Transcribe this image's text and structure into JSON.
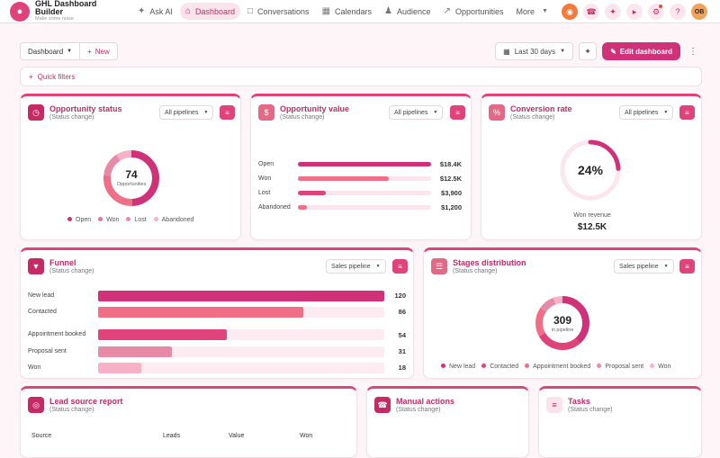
{
  "app": {
    "title": "GHL Dashboard Builder",
    "subtitle": "Make some noise"
  },
  "nav": [
    {
      "label": "Ask AI",
      "icon": "sparkle-icon"
    },
    {
      "label": "Dashboard",
      "icon": "home-icon",
      "active": true
    },
    {
      "label": "Conversations",
      "icon": "chat-icon"
    },
    {
      "label": "Calendars",
      "icon": "calendar-icon"
    },
    {
      "label": "Audience",
      "icon": "people-icon"
    },
    {
      "label": "Opportunities",
      "icon": "trend-icon"
    }
  ],
  "more_label": "More",
  "user_initials": "OB",
  "toolbar": {
    "dashboard_select": "Dashboard",
    "new_label": "New",
    "date_range": "Last 30 days",
    "edit_label": "Edit dashboard"
  },
  "quick_filters_label": "Quick filters",
  "colors": {
    "accent": "#e0437a",
    "dark": "#d0327a",
    "mid": "#f06f86",
    "light": "#e78aa8",
    "pale": "#f8b1c6"
  },
  "opportunity_status": {
    "title": "Opportunity status",
    "subtitle": "(Status change)",
    "pipeline": "All pipelines",
    "total": "74",
    "total_label": "Opportunities",
    "legend": [
      "Open",
      "Won",
      "Lost",
      "Abandoned"
    ]
  },
  "opportunity_value": {
    "title": "Opportunity value",
    "subtitle": "(Status change)",
    "pipeline": "All pipelines",
    "rows": [
      {
        "label": "Open",
        "value": "$18.4K",
        "fraction": 1.0
      },
      {
        "label": "Won",
        "value": "$12.5K",
        "fraction": 0.68
      },
      {
        "label": "Lost",
        "value": "$3,900",
        "fraction": 0.21
      },
      {
        "label": "Abandoned",
        "value": "$1,200",
        "fraction": 0.065
      }
    ]
  },
  "conversion_rate": {
    "title": "Conversion rate",
    "subtitle": "(Status change)",
    "pipeline": "All pipelines",
    "percent": "24%",
    "fraction": 0.24,
    "won_label": "Won revenue",
    "won_value": "$12.5K"
  },
  "funnel": {
    "title": "Funnel",
    "subtitle": "(Status change)",
    "pipeline": "Sales pipeline",
    "rows": [
      {
        "label": "New lead",
        "value": "120"
      },
      {
        "label": "Contacted",
        "value": "86"
      },
      {
        "label": "Appointment booked",
        "value": "54"
      },
      {
        "label": "Proposal sent",
        "value": "31"
      },
      {
        "label": "Won",
        "value": "18"
      }
    ]
  },
  "stages": {
    "title": "Stages distribution",
    "subtitle": "(Status change)",
    "pipeline": "Sales pipeline",
    "total": "309",
    "total_label": "in pipeline",
    "legend": [
      "New lead",
      "Contacted",
      "Appointment booked",
      "Proposal sent",
      "Won"
    ]
  },
  "lead_source": {
    "title": "Lead source report",
    "subtitle": "(Status change)",
    "columns": [
      "Source",
      "Leads",
      "Value",
      "Won"
    ]
  },
  "manual_actions": {
    "title": "Manual actions",
    "subtitle": "(Status change)"
  },
  "tasks": {
    "title": "Tasks",
    "subtitle": "(Status change)"
  }
}
